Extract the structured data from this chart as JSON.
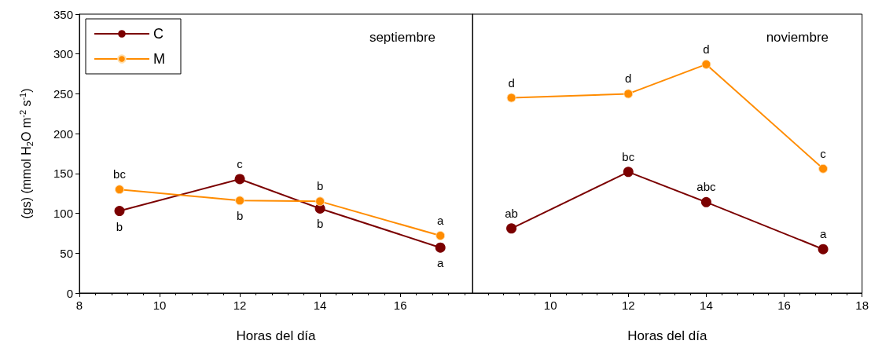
{
  "chart_data": [
    {
      "type": "line",
      "title": "septiembre",
      "xlabel": "Horas del día",
      "ylabel": "(gs) (mmol H$_{2}$O m$^{-2}$ s$^{-1}$)",
      "x": [
        9,
        12,
        14,
        17
      ],
      "series": [
        {
          "name": "C",
          "color": "#7b0000",
          "values": [
            103,
            143,
            106,
            57
          ]
        },
        {
          "name": "M",
          "color": "#ff8c00",
          "values": [
            130,
            116,
            115,
            72
          ]
        }
      ],
      "xlim": [
        8,
        17.8
      ],
      "xticks": [
        8,
        10,
        12,
        14,
        16
      ],
      "ylim": [
        0,
        350
      ],
      "yticks": [
        0,
        50,
        100,
        150,
        200,
        250,
        300,
        350
      ],
      "marker": "circle",
      "legend": "top left",
      "grid": false,
      "annotations": [
        {
          "text": "b",
          "x": 9,
          "y": 103
        },
        {
          "text": "c",
          "x": 12,
          "y": 143
        },
        {
          "text": "b",
          "x": 14,
          "y": 106
        },
        {
          "text": "a",
          "x": 17,
          "y": 57
        },
        {
          "text": "bc",
          "x": 9,
          "y": 130
        },
        {
          "text": "b",
          "x": 12,
          "y": 116
        },
        {
          "text": "b",
          "x": 14,
          "y": 115
        },
        {
          "text": "a",
          "x": 17,
          "y": 72
        }
      ]
    },
    {
      "type": "line",
      "title": "noviembre",
      "xlabel": "Horas del día",
      "x": [
        9,
        12,
        14,
        17
      ],
      "series": [
        {
          "color": "#7b0000",
          "values": [
            81,
            152,
            114,
            55
          ]
        },
        {
          "color": "#ff8c00",
          "values": [
            245,
            250,
            287,
            156
          ]
        }
      ],
      "xlim": [
        8,
        18
      ],
      "xticks": [
        10,
        12,
        14,
        16,
        18
      ],
      "ylim": [
        0,
        350
      ],
      "yticks": [
        0,
        50,
        100,
        150,
        200,
        250,
        300,
        350
      ],
      "marker": "circle",
      "legend": false,
      "grid": false,
      "tick_labels": "x",
      "annotations": [
        {
          "text": "ab",
          "x": 9,
          "y": 81
        },
        {
          "text": "bc",
          "x": 12,
          "y": 152
        },
        {
          "text": "abc",
          "x": 14,
          "y": 114
        },
        {
          "text": "a",
          "x": 17,
          "y": 55
        },
        {
          "text": "d",
          "x": 9,
          "y": 245
        },
        {
          "text": "d",
          "x": 12,
          "y": 250
        },
        {
          "text": "d",
          "x": 14,
          "y": 287
        },
        {
          "text": "c",
          "x": 17,
          "y": 156
        }
      ]
    }
  ]
}
